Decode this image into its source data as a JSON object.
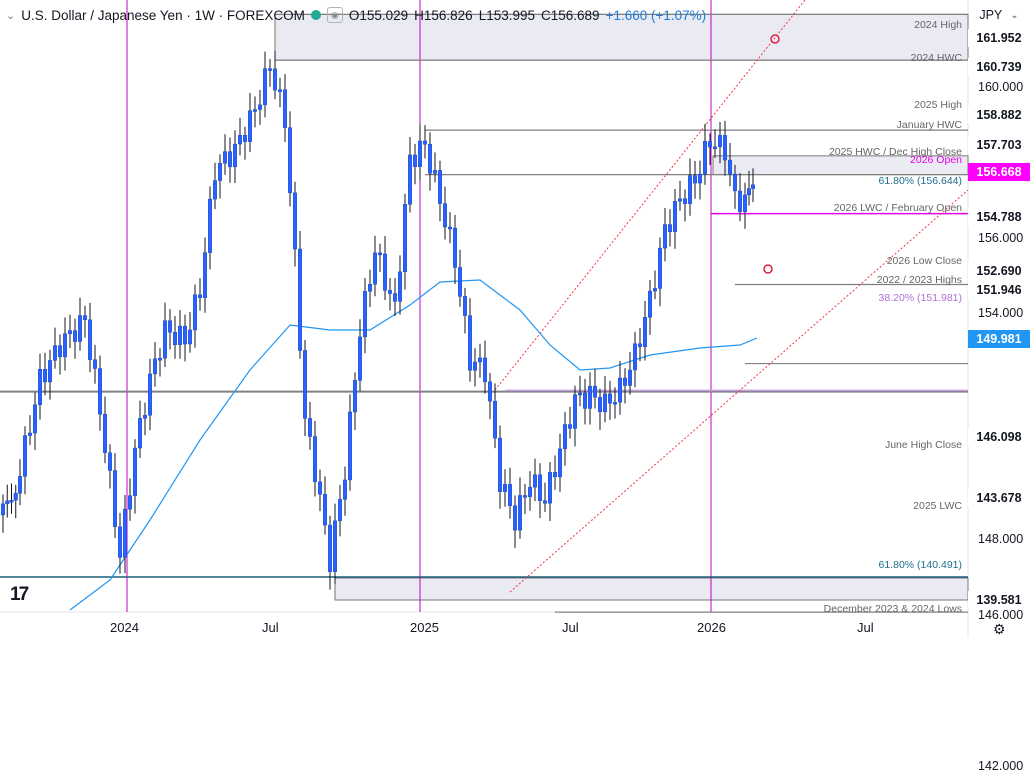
{
  "header": {
    "title": "U.S. Dollar / Japanese Yen · 1W · FOREXCOM",
    "open": "O155.029",
    "high": "H156.826",
    "low": "L153.995",
    "close": "C156.689",
    "change": "+1.660 (+1.07%)"
  },
  "currency_selector": {
    "value": "JPY"
  },
  "price_axis": {
    "ticks": [
      "160.000",
      "156.000",
      "154.000",
      "148.000",
      "146.000",
      "142.000"
    ],
    "tags": [
      "161.952",
      "160.739",
      "158.882",
      "157.703",
      "156.668",
      "154.788",
      "152.690",
      "151.946",
      "149.981",
      "146.098",
      "143.678",
      "139.581"
    ]
  },
  "time_axis": {
    "labels": [
      "2024",
      "Jul",
      "2025",
      "Jul",
      "2026",
      "Jul"
    ]
  },
  "annotations": [
    {
      "text": "2024 High",
      "color": "#666666"
    },
    {
      "text": "2024 HWC",
      "color": "#666666"
    },
    {
      "text": "2025 High",
      "color": "#666666"
    },
    {
      "text": "January HWC",
      "color": "#666666"
    },
    {
      "text": "2025 HWC / Dec High Close",
      "color": "#666666"
    },
    {
      "text": "2026 Open",
      "color": "#e600e6"
    },
    {
      "text": "61.80% (156.644)",
      "color": "#1e6e90"
    },
    {
      "text": "2026 LWC / February Open",
      "color": "#666666"
    },
    {
      "text": "2026 Low Close",
      "color": "#666666"
    },
    {
      "text": "2022 / 2023 Highs",
      "color": "#666666"
    },
    {
      "text": "38.20% (151.981)",
      "color": "#b06fd6"
    },
    {
      "text": "June High Close",
      "color": "#666666"
    },
    {
      "text": "2025 LWC",
      "color": "#666666"
    },
    {
      "text": "61.80% (140.491)",
      "color": "#1e6e90"
    },
    {
      "text": "December 2023 & 2024 Lows",
      "color": "#666666"
    }
  ],
  "colors": {
    "up_candle": "#2962ff",
    "down_candle": "#2962ff",
    "ma_line": "#2196f3",
    "vertical_marker": "#c000c0",
    "channel": "#f23645",
    "open_line": "#e600e6"
  },
  "chart_data": {
    "type": "candlestick",
    "interval": "1W",
    "symbol": "USD/JPY",
    "ylim": [
      139.0,
      162.5
    ],
    "horizontal_levels": [
      161.952,
      160.739,
      158.882,
      157.703,
      156.668,
      154.788,
      152.69,
      151.946,
      146.098,
      143.678,
      139.581
    ],
    "fib_levels": [
      156.644,
      151.981,
      140.491
    ],
    "ma_last": 149.981,
    "ohlc_last": {
      "open": 155.029,
      "high": 156.826,
      "low": 153.995,
      "close": 156.689
    }
  }
}
